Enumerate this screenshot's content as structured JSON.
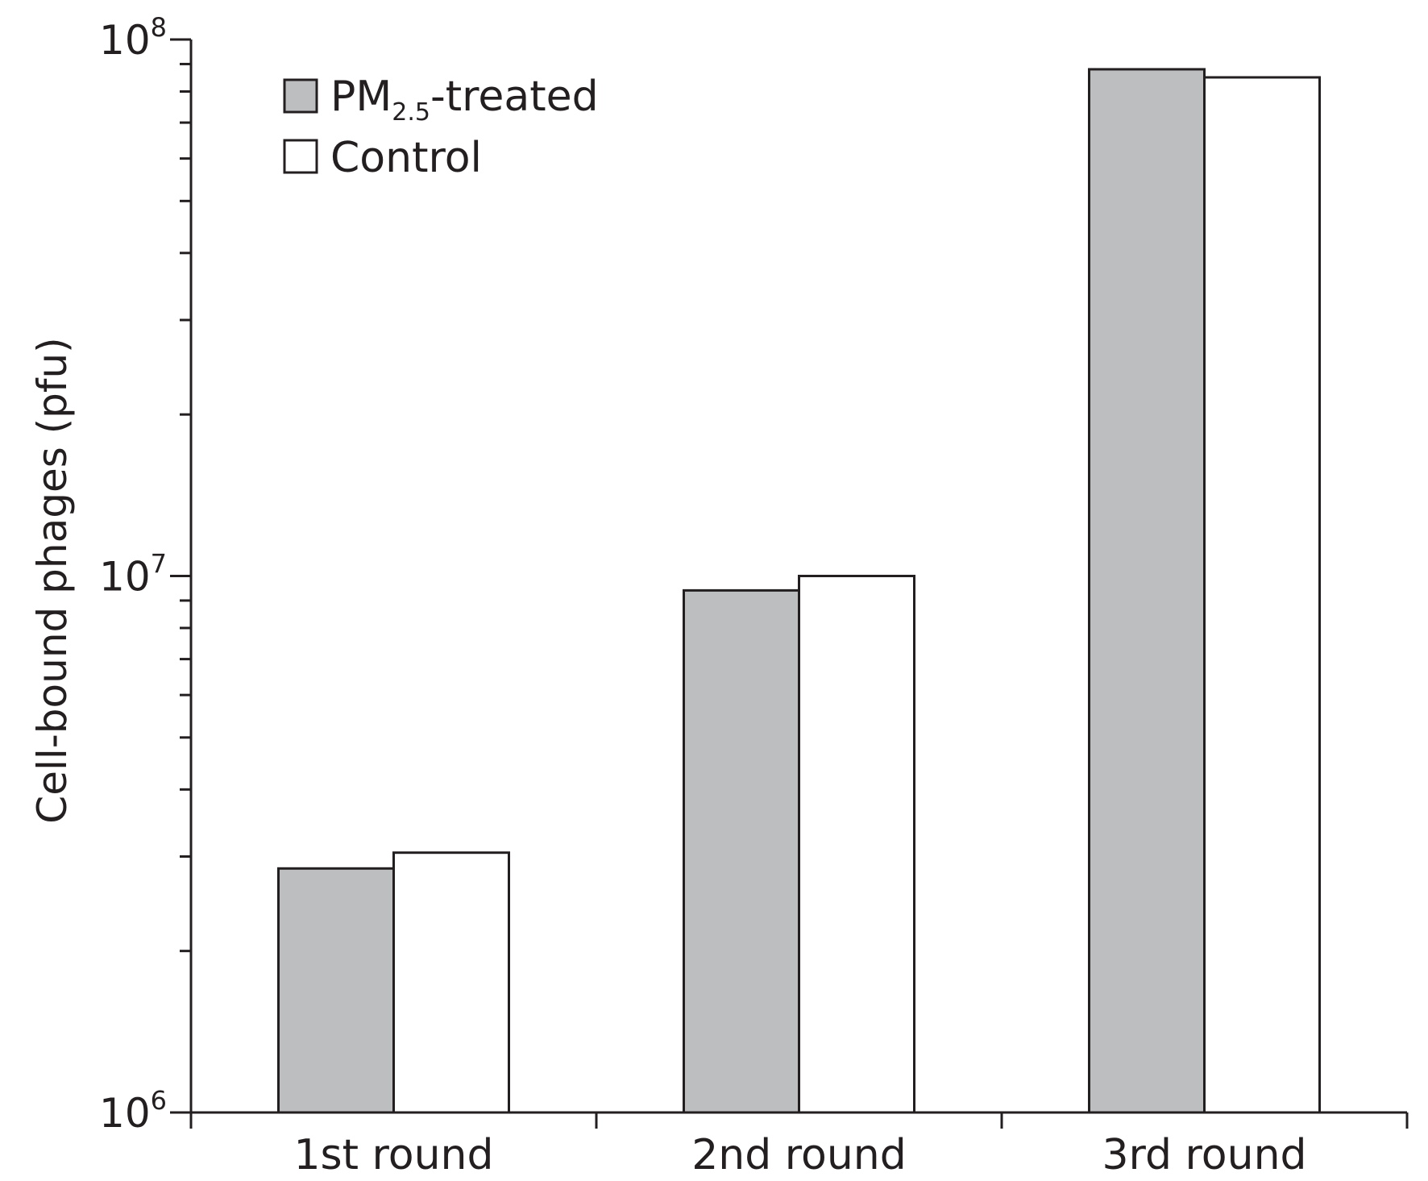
{
  "chart_data": {
    "type": "bar",
    "ylabel": "Cell-bound phages (pfu)",
    "xlabel": "",
    "yscale": "log",
    "ylim": [
      1000000,
      100000000
    ],
    "yticks": [
      {
        "value": 1000000,
        "base": "10",
        "exp": "6"
      },
      {
        "value": 10000000,
        "base": "10",
        "exp": "7"
      },
      {
        "value": 100000000,
        "base": "10",
        "exp": "8"
      }
    ],
    "categories": [
      "1st round",
      "2nd round",
      "3rd round"
    ],
    "series": [
      {
        "name": "PM2.5-treated",
        "name_main": "PM",
        "name_sub": "2.5",
        "name_tail": "-treated",
        "color": "#bcbec0",
        "values": [
          2850000,
          9400000,
          88000000
        ]
      },
      {
        "name": "Control",
        "color": "#ffffff",
        "values": [
          3050000,
          10000000,
          85000000
        ]
      }
    ],
    "legend_position": "top-left",
    "grid": false
  }
}
